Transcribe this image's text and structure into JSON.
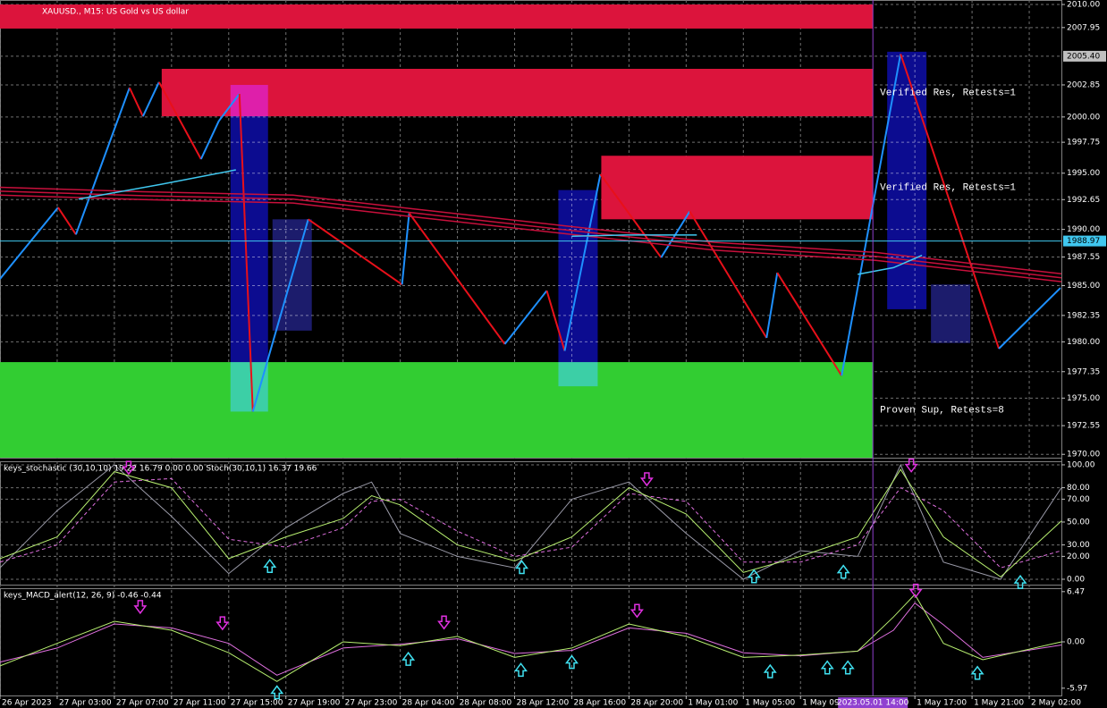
{
  "chart_data": [
    {
      "type": "line",
      "title": "XAUUSD., M15:  US Gold vs US dollar",
      "xlim": [
        0,
        297
      ],
      "ylim": [
        1969.7,
        2010.4
      ],
      "grid": true,
      "yticks": [
        {
          "value": 2010,
          "label": "2010.00"
        },
        {
          "value": 2007.95,
          "label": "2007.95"
        },
        {
          "value": 2002.85,
          "label": "2002.85"
        },
        {
          "value": 2000,
          "label": "2000.00"
        },
        {
          "value": 1997.75,
          "label": "1997.75"
        },
        {
          "value": 1995,
          "label": "1995.00"
        },
        {
          "value": 1992.65,
          "label": "1992.65"
        },
        {
          "value": 1990,
          "label": "1990.00"
        },
        {
          "value": 1987.55,
          "label": "1987.55"
        },
        {
          "value": 1985,
          "label": "1985.00"
        },
        {
          "value": 1982.35,
          "label": "1982.35"
        },
        {
          "value": 1980,
          "label": "1980.00"
        },
        {
          "value": 1977.35,
          "label": "1977.35"
        },
        {
          "value": 1975,
          "label": "1975.00"
        },
        {
          "value": 1972.55,
          "label": "1972.55"
        },
        {
          "value": 1970,
          "label": "1970.00"
        }
      ],
      "highlight_tick": {
        "value": 2005.4,
        "label": "2005.40"
      },
      "current": {
        "value": 1988.97,
        "label": "1988.97",
        "color": "#40c8f0"
      },
      "zones": [
        {
          "from": 0,
          "to": 244.25,
          "low": 2007.86,
          "high": 2010,
          "color": "#dc143c"
        },
        {
          "from": 45.25,
          "to": 244.25,
          "low": 2000.06,
          "high": 2004.28,
          "color": "#dc143c",
          "label": "Verified Res, Retests=1"
        },
        {
          "from": 168.25,
          "to": 244.25,
          "low": 1990.9,
          "high": 1996.55,
          "color": "#dc143c",
          "label": "Verified Res, Retests=1"
        },
        {
          "from": 0,
          "to": 244.25,
          "low": 1969.7,
          "high": 1978.2,
          "color": "#32cd32",
          "label": "Proven Sup, Retests=8"
        }
      ],
      "boxes": [
        {
          "from": 64.5,
          "to": 75,
          "low": 1973.8,
          "high": 2002.85,
          "color": "#0c0c90"
        },
        {
          "from": 76.25,
          "to": 87.25,
          "low": 1981,
          "high": 1990.9,
          "color": "#1c1c6c"
        },
        {
          "from": 156.25,
          "to": 167.25,
          "low": 1976.05,
          "high": 1993.5,
          "color": "#0c0c90"
        },
        {
          "from": 248.25,
          "to": 259.25,
          "low": 1982.9,
          "high": 2005.8,
          "color": "#0c0c90"
        },
        {
          "from": 260.5,
          "to": 271.5,
          "low": 1979.9,
          "high": 1985.1,
          "color": "#1c1c6c"
        }
      ],
      "series": [
        {
          "kind": "zigzag",
          "color": "#1e90ff",
          "down_color": "#e8101a",
          "x": [
            0,
            16.25,
            21.25,
            36.25,
            40,
            44.5,
            56.25,
            61.25,
            67,
            70.75,
            86.25,
            112.5,
            114.5,
            141.25,
            153,
            158,
            168,
            185,
            193,
            214.5,
            217.5,
            235.5,
            252,
            279.5,
            296.75
          ],
          "values": [
            1985.6,
            1991.95,
            1989.55,
            2002.6,
            2000.05,
            2003.1,
            1996.25,
            1999.65,
            2002.05,
            1973.8,
            1990.9,
            1985.1,
            1991.45,
            1979.8,
            1984.55,
            1979.2,
            1994.9,
            1987.5,
            1991.6,
            1980.35,
            1986.15,
            1977,
            2005.6,
            1979.4,
            1984.8
          ]
        },
        {
          "color": "#c8103c",
          "x": [
            0,
            40,
            82,
            115,
            160,
            200,
            245,
            297
          ],
          "values": [
            1993.75,
            1993.35,
            1993.05,
            1991.85,
            1990.25,
            1988.85,
            1987.95,
            1986.05
          ]
        },
        {
          "color": "#c8103c",
          "x": [
            0,
            40,
            82,
            115,
            160,
            200,
            245,
            297
          ],
          "values": [
            1993.4,
            1993.0,
            1992.7,
            1991.5,
            1989.9,
            1988.5,
            1987.6,
            1985.7
          ]
        },
        {
          "color": "#c8103c",
          "x": [
            0,
            40,
            82,
            115,
            160,
            200,
            245,
            297
          ],
          "values": [
            1993.05,
            1992.65,
            1992.35,
            1991.15,
            1989.55,
            1988.15,
            1987.25,
            1985.35
          ]
        },
        {
          "color": "#40c8f0",
          "x": [
            22,
            45,
            66,
            110,
            160,
            175,
            195,
            220,
            240,
            250,
            258
          ],
          "values": [
            1992.7,
            1994,
            1995.3,
            null,
            1989.4,
            1989.5,
            1989.5,
            null,
            1986,
            1986.6,
            1987.7
          ]
        }
      ]
    },
    {
      "type": "line",
      "title": "keys_stochastic (30,10,10) 19.22 16.79 0.00 0.00 Stoch(30,10,1) 16.37 19.66",
      "xlim": [
        0,
        297
      ],
      "ylim": [
        -4.7,
        103.1
      ],
      "grid": true,
      "yticks": [
        {
          "value": 100,
          "label": "100.00"
        },
        {
          "value": 80,
          "label": "80.00"
        },
        {
          "value": 70,
          "label": "70.00"
        },
        {
          "value": 50,
          "label": "50.00"
        },
        {
          "value": 30,
          "label": "30.00"
        },
        {
          "value": 20,
          "label": "20.00"
        },
        {
          "value": 0,
          "label": "0.00"
        }
      ],
      "x": [
        0,
        16,
        32,
        48,
        64,
        80,
        96,
        104,
        112,
        128,
        144,
        160,
        176,
        192,
        208,
        224,
        240,
        252,
        264,
        280,
        297
      ],
      "series": [
        {
          "color": "#9a9aa8",
          "values": [
            10,
            60,
            100,
            55,
            5,
            45,
            75,
            85,
            40,
            20,
            10,
            70,
            85,
            40,
            0,
            25,
            20,
            100,
            15,
            0,
            80
          ]
        },
        {
          "color": "#e070e0",
          "dash": true,
          "values": [
            15,
            30,
            85,
            88,
            35,
            28,
            45,
            68,
            70,
            42,
            20,
            28,
            75,
            68,
            15,
            15,
            30,
            80,
            60,
            10,
            25
          ]
        },
        {
          "color": "#b8f070",
          "values": [
            18,
            37,
            94,
            80,
            18,
            37,
            53,
            73,
            65,
            30,
            16,
            37,
            80,
            57,
            6,
            20,
            37,
            96,
            37,
            2,
            51
          ]
        }
      ],
      "arrows": [
        {
          "x": 36,
          "y": 92,
          "dir": "down"
        },
        {
          "x": 75.5,
          "y": 17,
          "dir": "up"
        },
        {
          "x": 146,
          "y": 16,
          "dir": "up"
        },
        {
          "x": 181,
          "y": 82,
          "dir": "down"
        },
        {
          "x": 211,
          "y": 8,
          "dir": "up"
        },
        {
          "x": 236,
          "y": 12,
          "dir": "up"
        },
        {
          "x": 255,
          "y": 94,
          "dir": "down"
        },
        {
          "x": 285.5,
          "y": 3,
          "dir": "up"
        }
      ]
    },
    {
      "type": "line",
      "title": "keys_MACD_alert(12, 26, 9) -0.46 -0.44",
      "xlim": [
        0,
        297
      ],
      "ylim": [
        -6.91,
        6.91
      ],
      "grid": false,
      "yticks": [
        {
          "value": 6.47,
          "label": "6.47"
        },
        {
          "value": 0,
          "label": "0.00"
        },
        {
          "value": -5.97,
          "label": "-5.97"
        }
      ],
      "x": [
        0,
        16,
        32,
        48,
        64,
        77.5,
        96,
        112,
        128,
        144,
        160,
        176,
        192,
        208,
        224,
        240,
        250,
        256,
        264,
        275,
        297
      ],
      "series": [
        {
          "color": "#e070e0",
          "values": [
            -2.6,
            -0.8,
            2.3,
            1.8,
            -0.2,
            -4.3,
            -0.8,
            -0.3,
            0.4,
            -1.5,
            -1.1,
            1.8,
            1.1,
            -1.4,
            -1.8,
            -1.2,
            1.5,
            5.0,
            2.2,
            -2.0,
            -0.4
          ]
        },
        {
          "color": "#b8f070",
          "values": [
            -3.1,
            -0.2,
            2.65,
            1.5,
            -1.4,
            -5.1,
            0,
            -0.5,
            0.7,
            -2,
            -0.8,
            2.3,
            0.7,
            -2,
            -1.7,
            -1.2,
            3.2,
            6.1,
            -0.2,
            -2.3,
            0
          ]
        }
      ],
      "arrows": [
        {
          "x": 39.25,
          "y": 3.7,
          "dir": "down"
        },
        {
          "x": 62.25,
          "y": 1.6,
          "dir": "down"
        },
        {
          "x": 124.25,
          "y": 1.7,
          "dir": "down"
        },
        {
          "x": 178.25,
          "y": 3.2,
          "dir": "down"
        },
        {
          "x": 256.25,
          "y": 5.8,
          "dir": "down"
        },
        {
          "x": 77.5,
          "y": -5.7,
          "dir": "up"
        },
        {
          "x": 114.25,
          "y": -1.4,
          "dir": "up"
        },
        {
          "x": 145.75,
          "y": -2.8,
          "dir": "up"
        },
        {
          "x": 160,
          "y": -1.8,
          "dir": "up"
        },
        {
          "x": 215.5,
          "y": -3,
          "dir": "up"
        },
        {
          "x": 231.5,
          "y": -2.5,
          "dir": "up"
        },
        {
          "x": 237.25,
          "y": -2.5,
          "dir": "up"
        },
        {
          "x": 273.5,
          "y": -3.2,
          "dir": "up"
        }
      ],
      "xticks": [
        {
          "value": 0,
          "label": "26 Apr 2023"
        },
        {
          "value": 16,
          "label": "27 Apr 03:00"
        },
        {
          "value": 32,
          "label": "27 Apr 07:00"
        },
        {
          "value": 48,
          "label": "27 Apr 11:00"
        },
        {
          "value": 64,
          "label": "27 Apr 15:00"
        },
        {
          "value": 80,
          "label": "27 Apr 19:00"
        },
        {
          "value": 96,
          "label": "27 Apr 23:00"
        },
        {
          "value": 112,
          "label": "28 Apr 04:00"
        },
        {
          "value": 128,
          "label": "28 Apr 08:00"
        },
        {
          "value": 144,
          "label": "28 Apr 12:00"
        },
        {
          "value": 160,
          "label": "28 Apr 16:00"
        },
        {
          "value": 176,
          "label": "28 Apr 20:00"
        },
        {
          "value": 192,
          "label": "1 May 01:00"
        },
        {
          "value": 208,
          "label": "1 May 05:00"
        },
        {
          "value": 224,
          "label": "1 May 09:00"
        },
        {
          "value": 256,
          "label": "1 May 17:00"
        },
        {
          "value": 272,
          "label": "1 May 21:00"
        },
        {
          "value": 288,
          "label": "2 May 02:00"
        }
      ],
      "cursor": {
        "value": 244.25,
        "label": "2023.05.01 14:00",
        "color": "#9040d0"
      }
    }
  ]
}
